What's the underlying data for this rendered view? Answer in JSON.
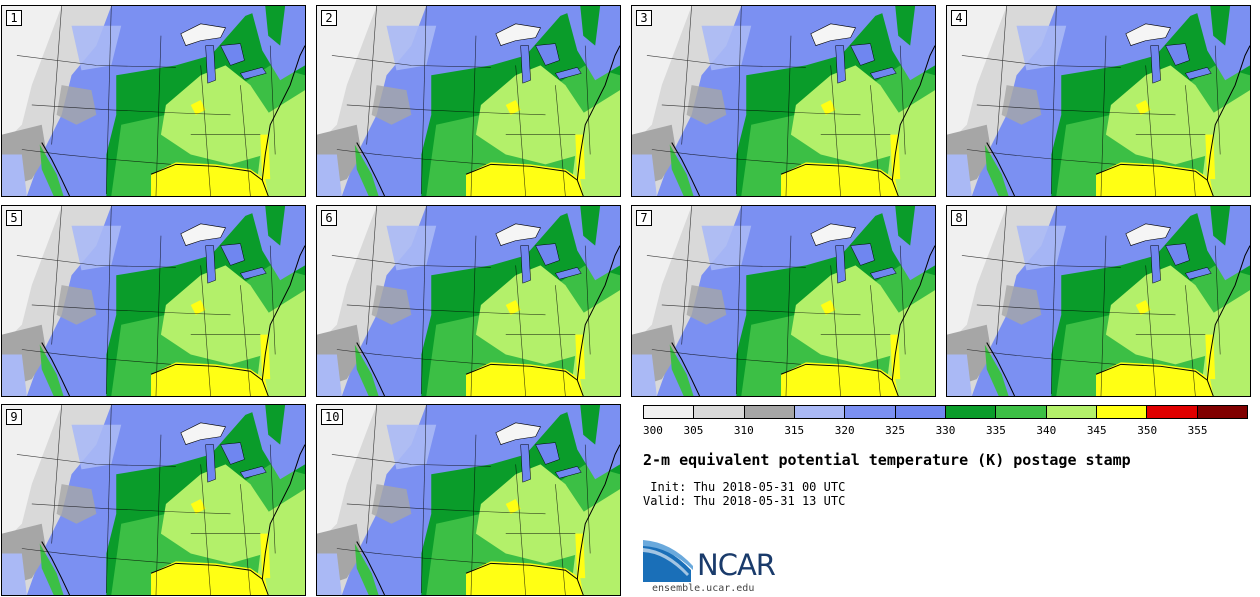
{
  "panels": [
    {
      "label": "1"
    },
    {
      "label": "2"
    },
    {
      "label": "3"
    },
    {
      "label": "4"
    },
    {
      "label": "5"
    },
    {
      "label": "6"
    },
    {
      "label": "7"
    },
    {
      "label": "8"
    },
    {
      "label": "9"
    },
    {
      "label": "10"
    }
  ],
  "colorbar": {
    "colors": [
      "#f0f0f0",
      "#d9d9d9",
      "#a6a6a6",
      "#aab9f5",
      "#7b90f2",
      "#6f86f0",
      "#0a9c2a",
      "#3cbf45",
      "#b3f06a",
      "#ffff14",
      "#e00000",
      "#800000"
    ],
    "ticks": [
      "300",
      "305",
      "310",
      "315",
      "320",
      "325",
      "330",
      "335",
      "340",
      "345",
      "350",
      "355"
    ]
  },
  "title": "2-m equivalent potential temperature (K) postage stamp",
  "init_line": " Init: Thu 2018-05-31 00 UTC",
  "valid_line": "Valid: Thu 2018-05-31 13 UTC",
  "logo": {
    "text": "NCAR",
    "site": "ensemble.ucar.edu"
  }
}
